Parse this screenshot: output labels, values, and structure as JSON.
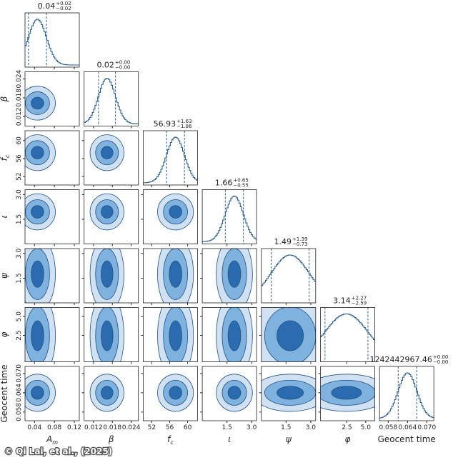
{
  "chart_data": {
    "type": "corner",
    "credit": "© Qi Lai, et al., (2025)",
    "color": "#2b6cb0",
    "parameters": [
      {
        "label": "A",
        "label_sub": "m",
        "median": "0.04",
        "plus": "+0.02",
        "minus": "−0.02",
        "lim": [
          0.021,
          0.13
        ],
        "ticks": [
          0.04,
          0.08,
          0.12
        ],
        "quantiles": [
          0.028,
          0.064
        ]
      },
      {
        "label": "β",
        "median": "0.02",
        "plus": "+0.00",
        "minus": "−0.00",
        "lim": [
          0.009,
          0.0263
        ],
        "ticks": [
          0.012,
          0.018,
          0.024
        ],
        "quantiles": [
          0.0136,
          0.019
        ]
      },
      {
        "label": "f",
        "label_sub": "c",
        "median": "56.93",
        "plus": "+1.63",
        "minus": "−1.86",
        "lim": [
          50.1,
          62.2
        ],
        "ticks": [
          52,
          56,
          60
        ],
        "quantiles": [
          55.3,
          59.3
        ]
      },
      {
        "label": "ι",
        "median": "1.66",
        "plus": "+0.65",
        "minus": "−0.55",
        "lim": [
          0,
          3.3
        ],
        "ticks": [
          1.5,
          {
            "value": 3,
            "label": "3.0"
          }
        ],
        "quantiles": [
          1.4,
          2.5
        ]
      },
      {
        "label": "ψ",
        "median": "1.49",
        "plus": "+1.39",
        "minus": "−0.73",
        "lim": [
          0,
          3.3
        ],
        "ticks": [
          1.5,
          {
            "value": 3,
            "label": "3.0"
          }
        ],
        "quantiles": [
          0.6,
          2.9
        ]
      },
      {
        "label": "φ",
        "median": "3.14",
        "plus": "+2.27",
        "minus": "−2.59",
        "lim": [
          -1,
          6.2
        ],
        "ticks": [
          2.5,
          {
            "value": 5,
            "label": "5.0"
          }
        ],
        "quantiles": [
          -0.4,
          5.3
        ]
      },
      {
        "label": "Geocent time",
        "median": "1242442967.46",
        "plus": "+0.00",
        "minus": "−0.00",
        "lim": [
          0.0553,
          0.0722
        ],
        "ticks": [
          0.058,
          0.064,
          {
            "value": 0.07,
            "label": "0.070"
          }
        ],
        "quantiles": [
          0.0611,
          0.0669
        ]
      }
    ]
  }
}
